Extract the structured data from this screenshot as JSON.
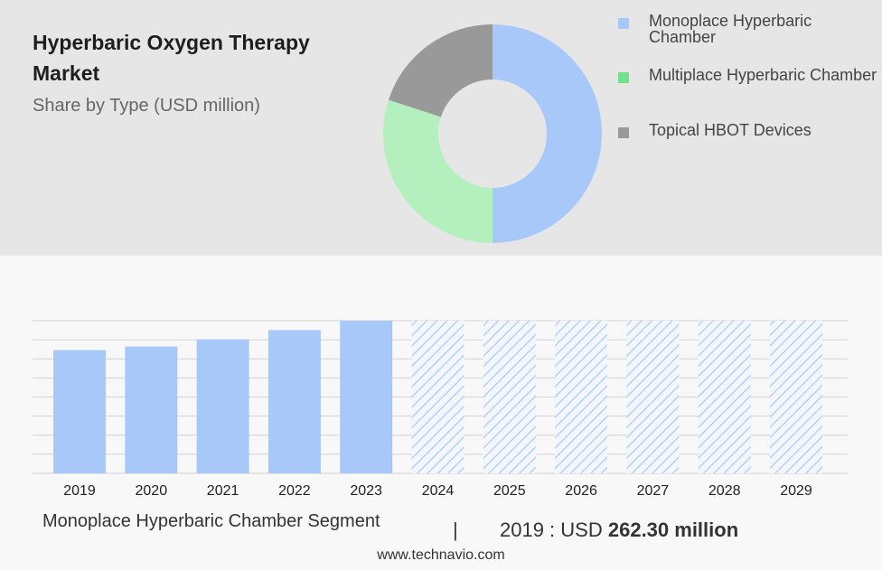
{
  "header": {
    "title": "Hyperbaric Oxygen Therapy Market",
    "subtitle": "Share by Type (USD million)"
  },
  "legend": {
    "items": [
      {
        "label": "Monoplace Hyperbaric Chamber",
        "color": "#a8c8fa"
      },
      {
        "label": "Multiplace Hyperbaric Chamber",
        "color": "#73e08c"
      },
      {
        "label": "Topical HBOT Devices",
        "color": "#999999"
      }
    ]
  },
  "chart_data": [
    {
      "type": "pie",
      "categories": [
        "Monoplace Hyperbaric Chamber",
        "Multiplace Hyperbaric Chamber",
        "Topical HBOT Devices"
      ],
      "values": [
        50,
        30,
        20
      ],
      "colors": [
        "#a8c8fa",
        "#b4f0be",
        "#999999"
      ],
      "donut": true
    },
    {
      "type": "bar",
      "categories": [
        "2019",
        "2020",
        "2021",
        "2022",
        "2023",
        "2024",
        "2025",
        "2026",
        "2027",
        "2028",
        "2029"
      ],
      "values": [
        262.3,
        270,
        285,
        305,
        325,
        null,
        null,
        null,
        null,
        null,
        null
      ],
      "forecast_categories": [
        "2024",
        "2025",
        "2026",
        "2027",
        "2028",
        "2029"
      ],
      "ylim": [
        0,
        325
      ],
      "grid": true,
      "bar_color": "#a8c8fa"
    }
  ],
  "footer": {
    "segment": "Monoplace Hyperbaric Chamber Segment",
    "divider": "|",
    "stat_prefix": "2019 : USD",
    "stat_value": "262.30 million"
  },
  "source": "www.technavio.com"
}
